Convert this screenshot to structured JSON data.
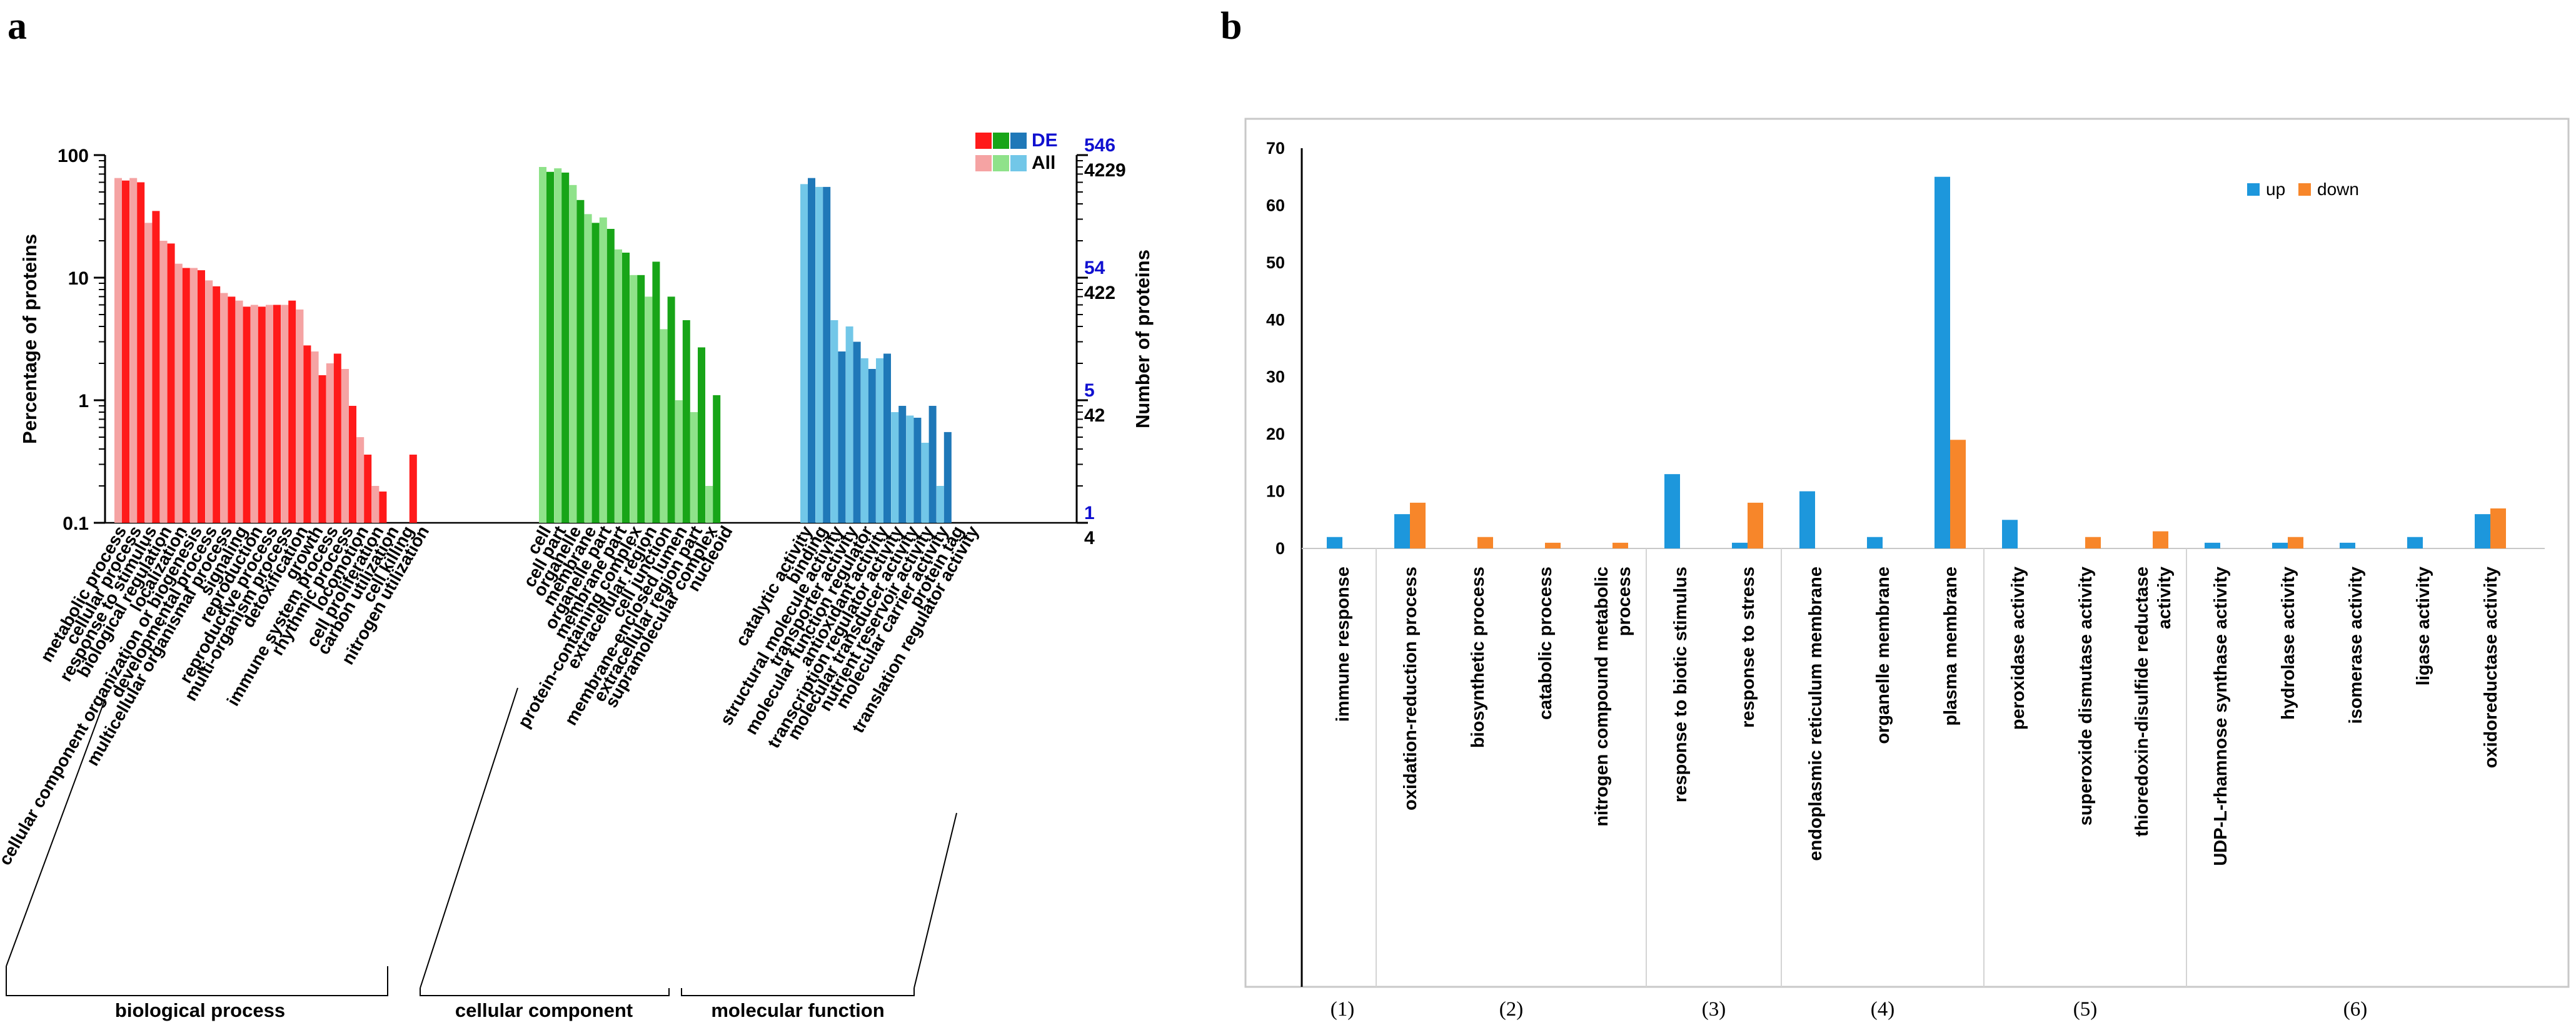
{
  "panels": {
    "a": "a",
    "b": "b"
  },
  "chart_data": [
    {
      "type": "bar",
      "panel": "a",
      "scale": "log",
      "ylim": [
        0.1,
        100
      ],
      "yticks": [
        "100",
        "10",
        "1",
        "0.1"
      ],
      "ylabel": "Percentage of proteins",
      "y2label": "Number of proteins",
      "y2ticks_all": [
        "4229",
        "422",
        "42",
        "4"
      ],
      "y2ticks_de": [
        "546",
        "54",
        "5",
        "1"
      ],
      "legend": {
        "de": "DE",
        "all": "All"
      },
      "colors": {
        "bp": {
          "de": "#ff1a1a",
          "all": "#f5a3a3"
        },
        "cc": {
          "de": "#18a518",
          "all": "#8fe28a"
        },
        "mf": {
          "de": "#1f78b8",
          "all": "#72c7e8"
        }
      },
      "groups": [
        {
          "key": "bp",
          "name": "biological process",
          "categories": [
            "metabolic process",
            "cellular process",
            "response to stimulus",
            "biological regulation",
            "localization",
            "cellular component organization or biogenesis",
            "developmental process",
            "multicellular organismal process",
            "signaling",
            "reproduction",
            "reproductive process",
            "multi-organism process",
            "detoxification",
            "growth",
            "immune system process",
            "rhythmic process",
            "locomotion",
            "cell proliferation",
            "carbon utilization",
            "cell killing",
            "nitrogen utilization"
          ],
          "series": [
            {
              "name": "All",
              "values": [
                65,
                65,
                28,
                20,
                13,
                12,
                9.5,
                7.5,
                6.5,
                6,
                6,
                6,
                5.5,
                2.5,
                2,
                1.8,
                0.5,
                0.2,
                null,
                null,
                null
              ]
            },
            {
              "name": "DE",
              "values": [
                62,
                60,
                35,
                19,
                12,
                11.5,
                8.5,
                7,
                5.8,
                5.8,
                6,
                6.5,
                2.8,
                1.6,
                2.4,
                0.9,
                0.36,
                0.18,
                null,
                0.36,
                null
              ]
            }
          ]
        },
        {
          "key": "cc",
          "name": "cellular component",
          "categories": [
            "cell",
            "cell part",
            "organelle",
            "membrane",
            "organelle part",
            "membrane part",
            "protein-containing complex",
            "extracellular region",
            "cell junction",
            "membrane-enclosed lumen",
            "extracellular region part",
            "supramolecular complex",
            "nucleoid"
          ],
          "series": [
            {
              "name": "All",
              "values": [
                80,
                78,
                57,
                33,
                31,
                17,
                10.5,
                7,
                3.8,
                1,
                0.8,
                0.2,
                null
              ]
            },
            {
              "name": "DE",
              "values": [
                73,
                72,
                43,
                28,
                25,
                16,
                10.5,
                13.5,
                7,
                4.5,
                2.7,
                1.1,
                null
              ]
            }
          ]
        },
        {
          "key": "mf",
          "name": "molecular function",
          "categories": [
            "catalytic activity",
            "binding",
            "structural molecule activity",
            "transporter activity",
            "molecular function regulator",
            "antioxidant activity",
            "transcription regulator activity",
            "molecular transducer activity",
            "nutrient reservoir activity",
            "molecular carrier activity",
            "protein tag",
            "translation regulator activity"
          ],
          "series": [
            {
              "name": "All",
              "values": [
                58,
                55,
                4.5,
                4,
                2.2,
                2.2,
                0.8,
                0.75,
                0.45,
                0.2,
                null,
                null
              ]
            },
            {
              "name": "DE",
              "values": [
                65,
                55,
                2.5,
                3,
                1.8,
                2.4,
                0.9,
                0.72,
                0.9,
                0.55,
                null,
                null
              ]
            }
          ]
        }
      ]
    },
    {
      "type": "bar",
      "panel": "b",
      "ylim": [
        0,
        70
      ],
      "yticks": [
        0,
        10,
        20,
        30,
        40,
        50,
        60,
        70
      ],
      "legend": [
        "up",
        "down"
      ],
      "colors": {
        "up": "#1d97dc",
        "down": "#f7862a"
      },
      "categories": [
        "immune response",
        "oxidation-reduction process",
        "biosynthetic process",
        "catabolic process",
        "nitrogen compound metabolic process",
        "response to biotic stimulus",
        "response to stress",
        "endoplasmic reticulum membrane",
        "organelle membrane",
        "plasma membrane",
        "peroxidase activity",
        "superoxide dismutase activity",
        "thioredoxin-disulfide reductase activity",
        "UDP-L-rhamnose synthase activity",
        "hydrolase activity",
        "isomerase activity",
        "ligase activity",
        "oxidoreductase activity"
      ],
      "category_lines": [
        [
          "immune response"
        ],
        [
          "oxidation-reduction process"
        ],
        [
          "biosynthetic process"
        ],
        [
          "catabolic process"
        ],
        [
          "nitrogen compound metabolic",
          "process"
        ],
        [
          "response to biotic stimulus"
        ],
        [
          "response to stress"
        ],
        [
          "endoplasmic reticulum membrane"
        ],
        [
          "organelle membrane"
        ],
        [
          "plasma membrane"
        ],
        [
          "peroxidase activity"
        ],
        [
          "superoxide dismutase activity"
        ],
        [
          "thioredoxin-disulfide reductase",
          "activity"
        ],
        [
          "UDP-L-rhamnose synthase activity"
        ],
        [
          "hydrolase activity"
        ],
        [
          "isomerase activity"
        ],
        [
          "ligase activity"
        ],
        [
          "oxidoreductase activity"
        ]
      ],
      "series": [
        {
          "name": "up",
          "values": [
            2,
            6,
            0,
            0,
            0,
            13,
            1,
            10,
            2,
            65,
            5,
            0,
            0,
            1,
            1,
            1,
            2,
            6
          ]
        },
        {
          "name": "down",
          "values": [
            0,
            8,
            2,
            1,
            1,
            0,
            8,
            0,
            0,
            19,
            0,
            2,
            3,
            0,
            2,
            0,
            0,
            7
          ]
        }
      ],
      "groups": [
        {
          "label": "(1)",
          "span": [
            0,
            0
          ]
        },
        {
          "label": "(2)",
          "span": [
            1,
            4
          ]
        },
        {
          "label": "(3)",
          "span": [
            5,
            6
          ]
        },
        {
          "label": "(4)",
          "span": [
            7,
            9
          ]
        },
        {
          "label": "(5)",
          "span": [
            10,
            12
          ]
        },
        {
          "label": "(6)",
          "span": [
            13,
            17
          ]
        }
      ]
    }
  ]
}
